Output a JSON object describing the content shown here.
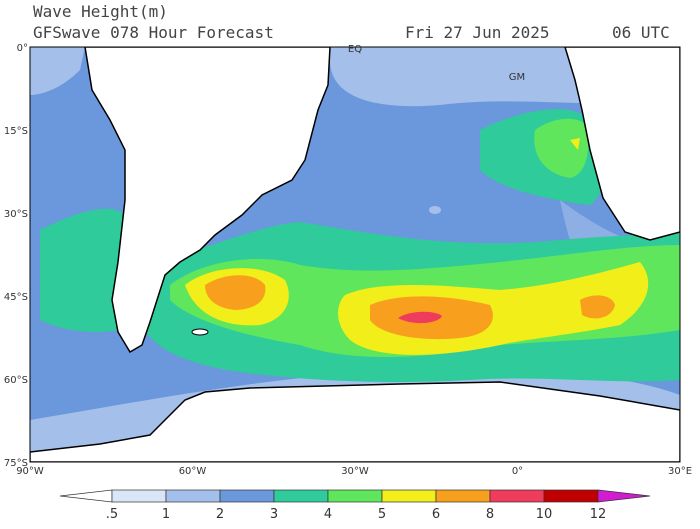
{
  "header": {
    "title": "Wave Height(m)",
    "subtitle": "GFSwave 078 Hour Forecast",
    "date": "Fri 27 Jun 2025",
    "time": "06 UTC"
  },
  "map": {
    "lat_labels": [
      "0°",
      "15°S",
      "30°S",
      "45°S",
      "60°S",
      "75°S"
    ],
    "lon_labels": [
      "90°W",
      "60°W",
      "30°W",
      "0°",
      "30°E"
    ],
    "markers": [
      "EQ",
      "GM"
    ]
  },
  "colorbar": {
    "labels": [
      ".5",
      "1",
      "2",
      "3",
      "4",
      "5",
      "6",
      "8",
      "10",
      "12"
    ]
  }
}
